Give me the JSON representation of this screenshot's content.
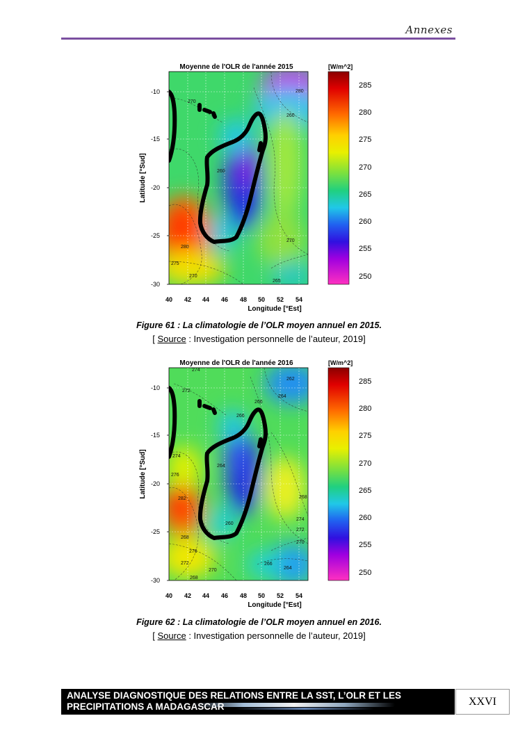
{
  "header": {
    "section": "Annexes"
  },
  "figures": [
    {
      "caption": "Figure 61 : La climatologie de l’OLR moyen annuel en 2015.",
      "source_label": "Source",
      "source_text": " : Investigation personnelle de l’auteur, 2019]",
      "source_open": "[ ",
      "chart_data": {
        "type": "heatmap",
        "title": "Moyenne de l'OLR de l'année 2015",
        "xlabel": "Longitude [°Est]",
        "ylabel": "Latitude [°Sud]",
        "unit_label": "[W/m^2]",
        "x_ticks": [
          40,
          42,
          44,
          46,
          48,
          50,
          52,
          54
        ],
        "y_ticks": [
          -10,
          -15,
          -20,
          -25,
          -30
        ],
        "xlim": [
          40,
          55
        ],
        "ylim": [
          -30,
          -7.5
        ],
        "colorbar_ticks": [
          285,
          280,
          275,
          270,
          265,
          260,
          255,
          250
        ],
        "colorbar_range": [
          248,
          288
        ],
        "contour_labels": [
          "270",
          "280",
          "260",
          "280",
          "260",
          "275",
          "270",
          "265",
          "270",
          "265",
          "280"
        ],
        "grid": true
      }
    },
    {
      "caption": "Figure 62 : La climatologie de l’OLR moyen annuel en 2016.",
      "source_label": "Source",
      "source_text": " : Investigation personnelle de l’auteur, 2019]",
      "source_open": "[ ",
      "chart_data": {
        "type": "heatmap",
        "title": "Moyenne de l'OLR de l'année 2016",
        "xlabel": "Longitude [°Est]",
        "ylabel": "Latitude [°Sud]",
        "unit_label": "[W/m^2]",
        "x_ticks": [
          40,
          42,
          44,
          46,
          48,
          50,
          52,
          54
        ],
        "y_ticks": [
          -10,
          -15,
          -20,
          -25,
          -30
        ],
        "xlim": [
          40,
          55
        ],
        "ylim": [
          -30,
          -7.5
        ],
        "colorbar_ticks": [
          285,
          280,
          275,
          270,
          265,
          260,
          255,
          250
        ],
        "colorbar_range": [
          248,
          288
        ],
        "contour_labels": [
          "274",
          "272",
          "266",
          "266",
          "264",
          "262",
          "274",
          "264",
          "276",
          "282",
          "260",
          "268",
          "276",
          "272",
          "270",
          "268",
          "266",
          "264",
          "274",
          "272",
          "270",
          "268"
        ],
        "grid": true
      }
    }
  ],
  "footer": {
    "title": "ANALYSE DIAGNOSTIQUE DES RELATIONS ENTRE LA SST, L’OLR ET LES PRECIPITATIONS A MADAGASCAR",
    "page": "XXVI"
  }
}
